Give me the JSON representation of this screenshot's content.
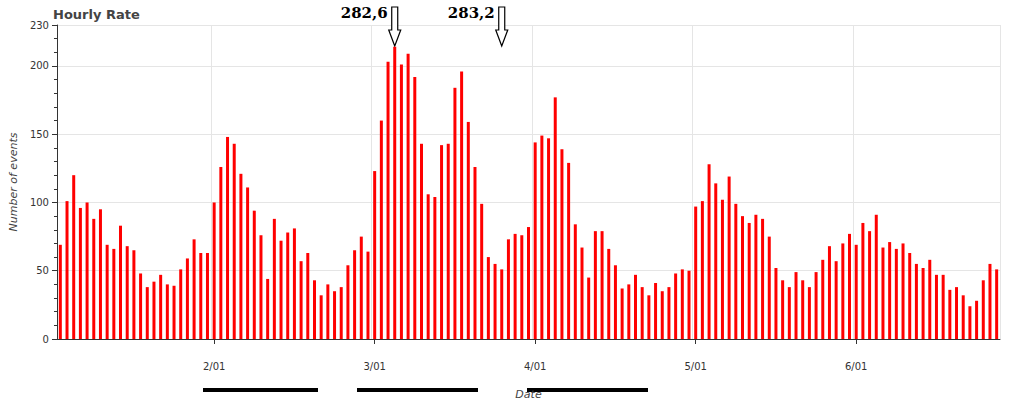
{
  "chart_data": {
    "type": "bar",
    "title": "Hourly Rate",
    "x_label": "Date",
    "y_label": "Number of events",
    "categories": [
      null,
      null,
      null,
      null,
      null,
      null,
      null,
      null,
      null,
      null,
      null,
      null,
      null,
      null,
      null,
      null,
      null,
      null,
      null,
      null,
      null,
      null,
      null,
      "2/01",
      null,
      null,
      null,
      null,
      null,
      null,
      null,
      null,
      null,
      null,
      null,
      null,
      null,
      null,
      null,
      null,
      null,
      null,
      null,
      null,
      null,
      null,
      null,
      "3/01",
      null,
      null,
      null,
      null,
      null,
      null,
      null,
      null,
      null,
      null,
      null,
      null,
      null,
      null,
      null,
      null,
      null,
      null,
      null,
      null,
      null,
      null,
      null,
      "4/01",
      null,
      null,
      null,
      null,
      null,
      null,
      null,
      null,
      null,
      null,
      null,
      null,
      null,
      null,
      null,
      null,
      null,
      null,
      null,
      null,
      null,
      null,
      null,
      "5/01",
      null,
      null,
      null,
      null,
      null,
      null,
      null,
      null,
      null,
      null,
      null,
      null,
      null,
      null,
      null,
      null,
      null,
      null,
      null,
      null,
      null,
      null,
      null,
      "6/01",
      null,
      null,
      null,
      null,
      null,
      null,
      null,
      null,
      null,
      null,
      null,
      null,
      null,
      null,
      null,
      null,
      null,
      null,
      null,
      null,
      null
    ],
    "values": [
      69,
      101,
      120,
      96,
      100,
      88,
      95,
      69,
      66,
      83,
      68,
      65,
      48,
      38,
      42,
      47,
      40,
      39,
      51,
      59,
      73,
      63,
      63,
      100,
      126,
      148,
      143,
      121,
      111,
      94,
      76,
      44,
      88,
      72,
      78,
      81,
      57,
      63,
      43,
      32,
      40,
      35,
      38,
      54,
      65,
      75,
      64,
      123,
      160,
      203,
      214,
      201,
      209,
      192,
      143,
      106,
      104,
      142,
      143,
      184,
      196,
      159,
      126,
      99,
      60,
      55,
      51,
      73,
      77,
      76,
      82,
      144,
      149,
      147,
      177,
      139,
      129,
      84,
      67,
      45,
      79,
      79,
      66,
      54,
      37,
      40,
      47,
      38,
      32,
      41,
      35,
      38,
      48,
      51,
      50,
      97,
      101,
      128,
      114,
      102,
      119,
      99,
      90,
      85,
      91,
      88,
      75,
      52,
      43,
      38,
      49,
      43,
      38,
      49,
      58,
      68,
      57,
      70,
      77,
      69,
      85,
      79,
      91,
      67,
      71,
      66,
      70,
      63,
      55,
      52,
      58,
      47,
      47,
      36,
      38,
      32,
      24,
      28,
      43,
      55,
      51
    ],
    "color": "#ff0000",
    "ylim": [
      0,
      230
    ],
    "yticks": [
      0,
      50,
      100,
      150,
      200
    ],
    "grid": true,
    "annotations": [
      {
        "text": "282,6",
        "category_index": 50
      },
      {
        "text": "283,2",
        "category_index": 66
      }
    ]
  }
}
